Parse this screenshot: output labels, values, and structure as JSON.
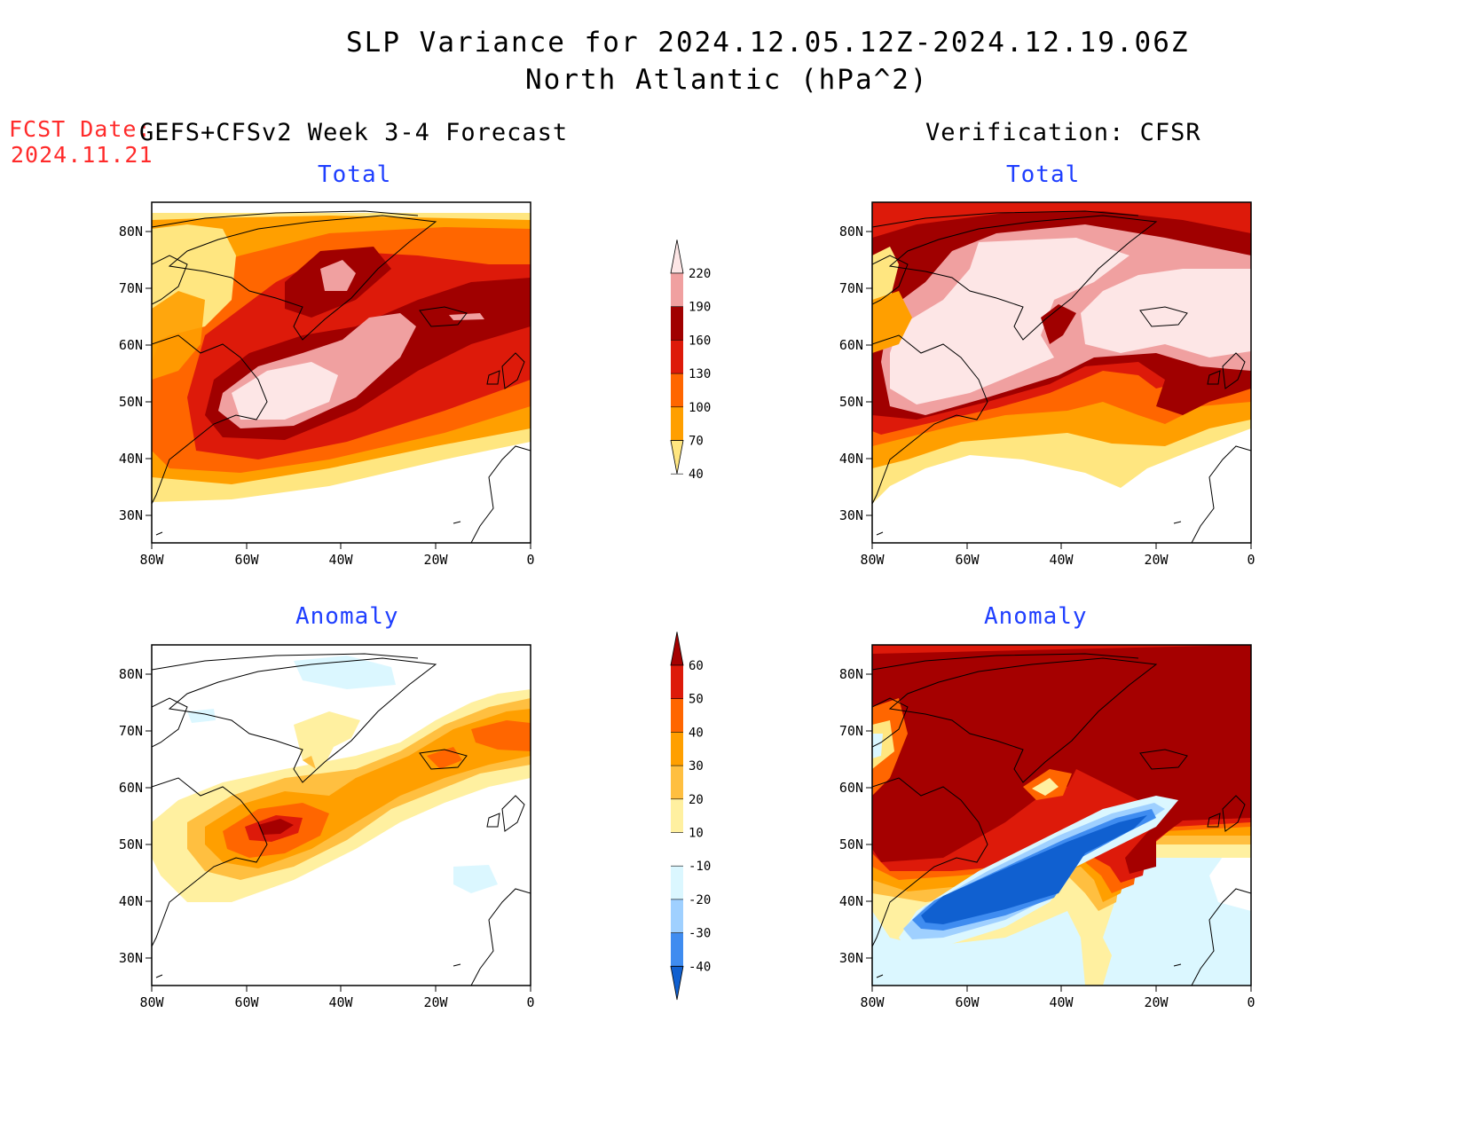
{
  "title": {
    "line1": "SLP Variance for 2024.12.05.12Z-2024.12.19.06Z",
    "line2": "North Atlantic (hPa^2)"
  },
  "fcst": {
    "label": "FCST Date:",
    "date": "2024.11.21"
  },
  "left_header": "GEFS+CFSv2 Week 3-4 Forecast",
  "right_header": "Verification: CFSR",
  "panels": {
    "fcst_total_title": "Total",
    "obs_total_title": "Total",
    "fcst_anom_title": "Anomaly",
    "obs_anom_title": "Anomaly"
  },
  "axes": {
    "lat_labels": [
      "80N",
      "70N",
      "60N",
      "50N",
      "40N",
      "30N"
    ],
    "lon_labels": [
      "80W",
      "60W",
      "40W",
      "20W",
      "0"
    ]
  },
  "total_colorbar": {
    "levels": [
      "220",
      "190",
      "160",
      "130",
      "100",
      "70",
      "40"
    ],
    "colors": [
      "#fde6e6",
      "#f0a0a0",
      "#a00000",
      "#dd1a0a",
      "#ff6600",
      "#ff9f00",
      "#ffe680"
    ]
  },
  "anomaly_colorbar": {
    "levels": [
      "60",
      "50",
      "40",
      "30",
      "20",
      "10",
      "-10",
      "-20",
      "-30",
      "-40"
    ],
    "colors": [
      "#a50000",
      "#dd1a0a",
      "#ff6600",
      "#ff9f00",
      "#ffbf40",
      "#fff0a0",
      "#ffffff",
      "#dbf7ff",
      "#9fd0ff",
      "#3f8cf0",
      "#1060d0"
    ]
  }
}
